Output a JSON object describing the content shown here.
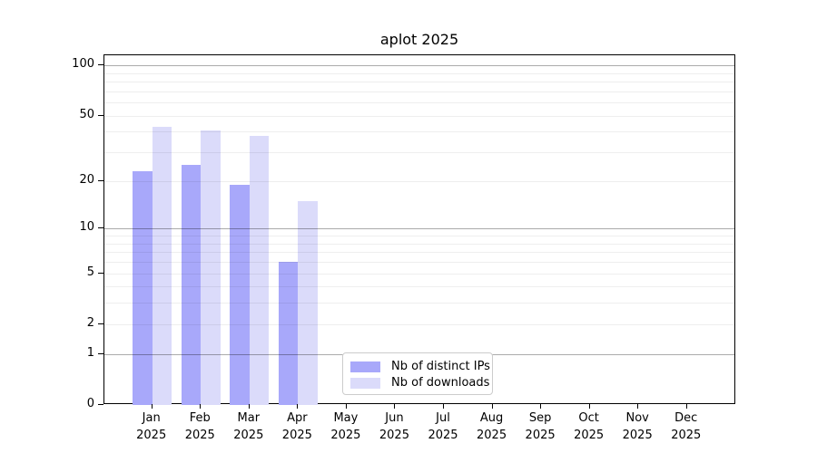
{
  "chart_data": {
    "type": "bar",
    "title": "aplot 2025",
    "year": "2025",
    "categories": [
      "Jan",
      "Feb",
      "Mar",
      "Apr",
      "May",
      "Jun",
      "Jul",
      "Aug",
      "Sep",
      "Oct",
      "Nov",
      "Dec"
    ],
    "series": [
      {
        "name": "Nb of distinct IPs",
        "color": "#a8a8fa",
        "values": [
          23,
          25,
          19,
          6,
          0,
          0,
          0,
          0,
          0,
          0,
          0,
          0
        ]
      },
      {
        "name": "Nb of downloads",
        "color": "#dbdbfa",
        "values": [
          43,
          41,
          38,
          15,
          0,
          0,
          0,
          0,
          0,
          0,
          0,
          0
        ]
      }
    ],
    "yscale": "log1p",
    "ylim": [
      0,
      117
    ],
    "yticks": [
      100,
      50,
      20,
      10,
      5,
      2,
      1,
      0
    ],
    "major_gridlines": [
      1,
      10,
      100
    ],
    "minor_gridlines": [
      2,
      3,
      4,
      5,
      6,
      7,
      8,
      9,
      20,
      30,
      40,
      50,
      60,
      70,
      80,
      90
    ],
    "grid": true,
    "legend_position": "lower center-right inside axes",
    "colors": {
      "axis": "#000000",
      "major_grid": "#ababab",
      "minor_grid": "#efefef",
      "legend_border": "#cccccc",
      "background": "#ffffff"
    }
  }
}
